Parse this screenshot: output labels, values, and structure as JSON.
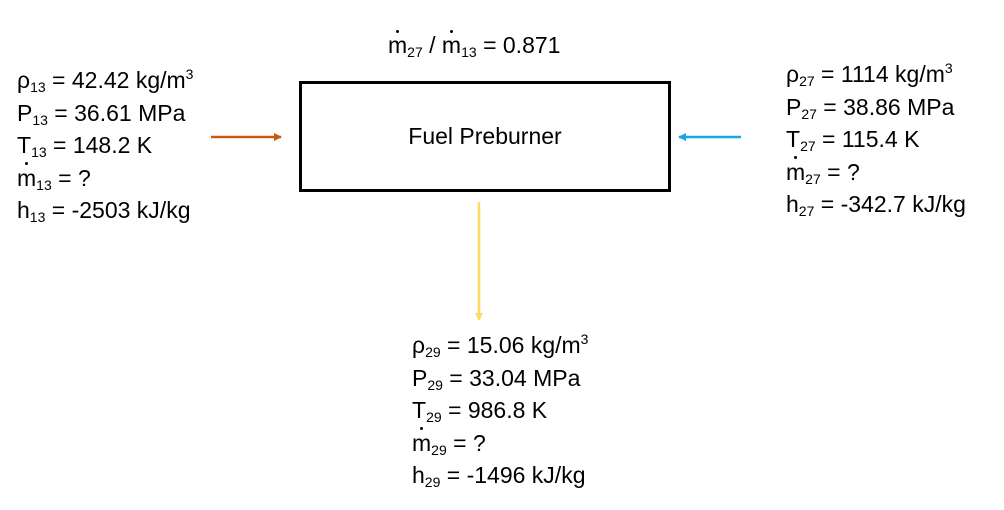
{
  "ratio": {
    "m1": "m",
    "s1": "27",
    "m2": "m",
    "s2": "13",
    "value": "= 0.871",
    "sep": "/"
  },
  "box": {
    "label": "Fuel Preburner"
  },
  "stream13": {
    "rho": {
      "sym": "ρ",
      "sub": "13",
      "text": " = 42.42 kg/m",
      "sup": "3"
    },
    "P": {
      "sym": "P",
      "sub": "13",
      "text": " = 36.61 MPa"
    },
    "T": {
      "sym": "T",
      "sub": "13",
      "text": " = 148.2 K"
    },
    "m": {
      "sym": "m",
      "sub": "13",
      "text": " = ?"
    },
    "h": {
      "sym": "h",
      "sub": "13",
      "text": " = -2503 kJ/kg"
    },
    "arrow_color": "#c55a11"
  },
  "stream27": {
    "rho": {
      "sym": "ρ",
      "sub": "27",
      "text": " = 1114 kg/m",
      "sup": "3"
    },
    "P": {
      "sym": "P",
      "sub": "27",
      "text": " = 38.86 MPa"
    },
    "T": {
      "sym": "T",
      "sub": "27",
      "text": " = 115.4 K"
    },
    "m": {
      "sym": "m",
      "sub": "27",
      "text": " = ?"
    },
    "h": {
      "sym": "h",
      "sub": "27",
      "text": " = -342.7 kJ/kg"
    },
    "arrow_color": "#1ca3e3"
  },
  "stream29": {
    "rho": {
      "sym": "ρ",
      "sub": "29",
      "text": " = 15.06 kg/m",
      "sup": "3"
    },
    "P": {
      "sym": "P",
      "sub": "29",
      "text": " = 33.04 MPa"
    },
    "T": {
      "sym": "T",
      "sub": "29",
      "text": " = 986.8 K"
    },
    "m": {
      "sym": "m",
      "sub": "29",
      "text": " = ?"
    },
    "h": {
      "sym": "h",
      "sub": "29",
      "text": " = -1496 kJ/kg"
    },
    "arrow_color": "#ffd966"
  }
}
